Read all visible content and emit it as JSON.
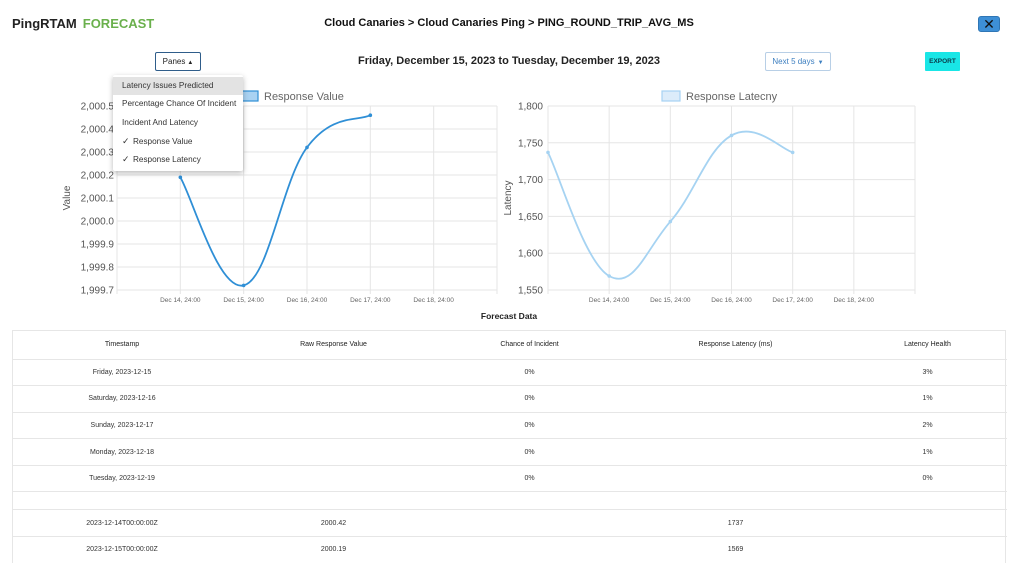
{
  "header": {
    "app_name": "PingRTAM",
    "app_tag": "FORECAST",
    "breadcrumb": "Cloud Canaries > Cloud Canaries Ping > PING_ROUND_TRIP_AVG_MS",
    "close_glyph": "✕"
  },
  "toolbar": {
    "panes_label": "Panes",
    "date_range": "Friday, December 15, 2023 to Tuesday, December 19, 2023",
    "period_label": "Next 5 days",
    "export_label": "EXPORT"
  },
  "panes_menu": {
    "items": [
      {
        "label": "Latency Issues Predicted",
        "checked": false,
        "highlighted": true
      },
      {
        "label": "Percentage Chance Of Incident",
        "checked": false,
        "highlighted": false
      },
      {
        "label": "Incident And Latency",
        "checked": false,
        "highlighted": false
      },
      {
        "label": "Response Value",
        "checked": true,
        "highlighted": false
      },
      {
        "label": "Response Latency",
        "checked": true,
        "highlighted": false
      }
    ]
  },
  "chart_data": [
    {
      "type": "line",
      "ylabel": "Value",
      "xlabel": "",
      "x_ticks": [
        "Dec 14, 24:00",
        "Dec 15, 24:00",
        "Dec 16, 24:00",
        "Dec 17, 24:00",
        "Dec 18, 24:00"
      ],
      "y_ticks": [
        "1,999.7",
        "1,999.8",
        "1,999.9",
        "2,000.0",
        "2,000.1",
        "2,000.2",
        "2,000.3",
        "2,000.4",
        "2,000.5"
      ],
      "ylim": [
        1999.7,
        2000.5
      ],
      "grid": true,
      "legend_position": "top",
      "series": [
        {
          "name": "Response Value",
          "color": "#2f8fd6",
          "fill": "#a9d2f2",
          "x": [
            0,
            1,
            2,
            3
          ],
          "values": [
            2000.19,
            1999.72,
            2000.32,
            2000.46
          ]
        }
      ]
    },
    {
      "type": "line",
      "ylabel": "Latency",
      "xlabel": "",
      "x_ticks": [
        "Dec 14, 24:00",
        "Dec 15, 24:00",
        "Dec 16, 24:00",
        "Dec 17, 24:00",
        "Dec 18, 24:00"
      ],
      "y_ticks": [
        "1,550",
        "1,600",
        "1,650",
        "1,700",
        "1,750",
        "1,800"
      ],
      "ylim": [
        1550,
        1800
      ],
      "grid": true,
      "legend_position": "top",
      "series": [
        {
          "name": "Response Latecny",
          "color": "#a6d3f2",
          "fill": "#dcecfa",
          "x": [
            -1,
            0,
            1,
            2,
            3
          ],
          "values": [
            1737,
            1569,
            1643,
            1760,
            1737
          ]
        }
      ]
    }
  ],
  "forecast": {
    "title": "Forecast Data",
    "columns": [
      "Timestamp",
      "Raw Response Value",
      "Chance of Incident",
      "Response Latency (ms)",
      "Latency Health"
    ],
    "rows": [
      [
        "Friday, 2023-12-15",
        "",
        "0%",
        "",
        "3%"
      ],
      [
        "Saturday, 2023-12-16",
        "",
        "0%",
        "",
        "1%"
      ],
      [
        "Sunday, 2023-12-17",
        "",
        "0%",
        "",
        "2%"
      ],
      [
        "Monday, 2023-12-18",
        "",
        "0%",
        "",
        "1%"
      ],
      [
        "Tuesday, 2023-12-19",
        "",
        "0%",
        "",
        "0%"
      ]
    ],
    "raw_rows": [
      [
        "2023-12-14T00:00:00Z",
        "2000.42",
        "",
        "1737",
        ""
      ],
      [
        "2023-12-15T00:00:00Z",
        "2000.19",
        "",
        "1569",
        ""
      ]
    ]
  }
}
